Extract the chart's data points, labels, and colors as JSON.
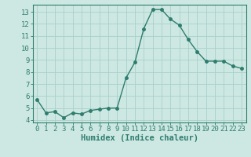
{
  "x": [
    0,
    1,
    2,
    3,
    4,
    5,
    6,
    7,
    8,
    9,
    10,
    11,
    12,
    13,
    14,
    15,
    16,
    17,
    18,
    19,
    20,
    21,
    22,
    23
  ],
  "y": [
    5.7,
    4.6,
    4.7,
    4.2,
    4.6,
    4.5,
    4.8,
    4.9,
    5.0,
    5.0,
    7.5,
    8.8,
    11.6,
    13.2,
    13.2,
    12.4,
    11.9,
    10.7,
    9.7,
    8.9,
    8.9,
    8.9,
    8.5,
    8.3
  ],
  "line_color": "#2e7d6e",
  "marker_color": "#2e7d6e",
  "bg_color": "#cde8e2",
  "grid_color": "#aacfca",
  "xlabel": "Humidex (Indice chaleur)",
  "ylabel_ticks": [
    4,
    5,
    6,
    7,
    8,
    9,
    10,
    11,
    12,
    13
  ],
  "xlim": [
    -0.5,
    23.5
  ],
  "ylim": [
    3.8,
    13.6
  ],
  "xticks": [
    0,
    1,
    2,
    3,
    4,
    5,
    6,
    7,
    8,
    9,
    10,
    11,
    12,
    13,
    14,
    15,
    16,
    17,
    18,
    19,
    20,
    21,
    22,
    23
  ],
  "tick_label_fontsize": 6.5,
  "xlabel_fontsize": 7.5,
  "line_width": 1.0,
  "marker_size": 2.5
}
